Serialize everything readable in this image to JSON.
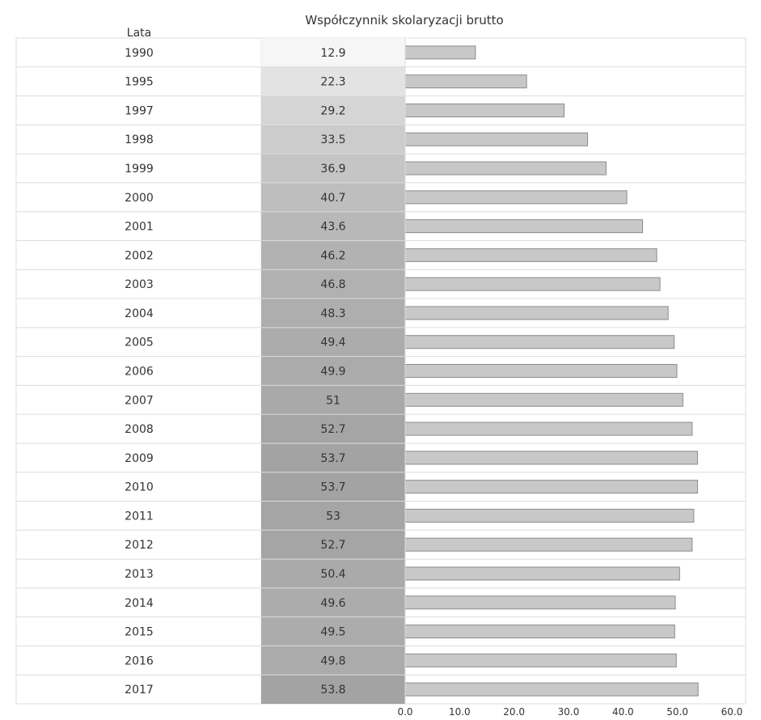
{
  "chart_data": {
    "type": "bar",
    "orientation": "horizontal",
    "title": "Współczynnik skolaryzacji brutto",
    "category_header": "Lata",
    "categories": [
      "1990",
      "1995",
      "1997",
      "1998",
      "1999",
      "2000",
      "2001",
      "2002",
      "2003",
      "2004",
      "2005",
      "2006",
      "2007",
      "2008",
      "2009",
      "2010",
      "2011",
      "2012",
      "2013",
      "2014",
      "2015",
      "2016",
      "2017"
    ],
    "values": [
      12.9,
      22.3,
      29.2,
      33.5,
      36.9,
      40.7,
      43.6,
      46.2,
      46.8,
      48.3,
      49.4,
      49.9,
      51,
      52.7,
      53.7,
      53.7,
      53,
      52.7,
      50.4,
      49.6,
      49.5,
      49.8,
      53.8
    ],
    "value_labels": [
      "12.9",
      "22.3",
      "29.2",
      "33.5",
      "36.9",
      "40.7",
      "43.6",
      "46.2",
      "46.8",
      "48.3",
      "49.4",
      "49.9",
      "51",
      "52.7",
      "53.7",
      "53.7",
      "53",
      "52.7",
      "50.4",
      "49.6",
      "49.5",
      "49.8",
      "53.8"
    ],
    "xlim": [
      0,
      60
    ],
    "x_ticks": [
      "0.0",
      "10.0",
      "20.0",
      "30.0",
      "40.0",
      "50.0",
      "60.0"
    ],
    "grid": "row-lines",
    "legend": "none",
    "colors": {
      "bar_fill": "#c8c8c8",
      "bar_stroke": "#8c8c8c",
      "grid": "#dcdcdc",
      "text": "#333333",
      "value_cell_light": "#f6f6f6",
      "value_cell_dark": "#a3a3a3"
    }
  }
}
